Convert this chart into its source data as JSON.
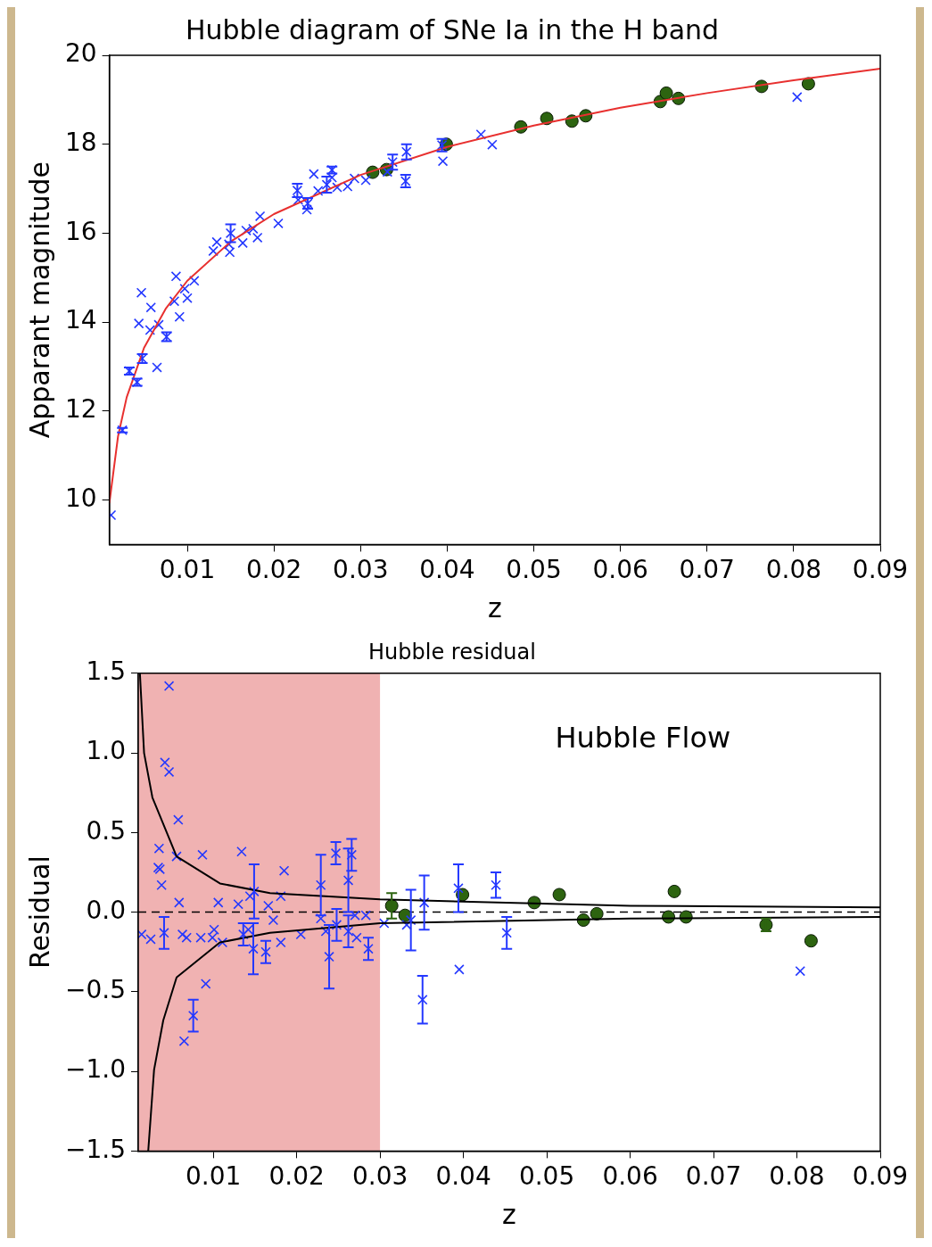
{
  "chart_data": [
    {
      "type": "scatter",
      "title": "Hubble diagram of SNe Ia in the H band",
      "xlabel": "z",
      "ylabel": "Apparant magnitude",
      "xlim": [
        0.001,
        0.09
      ],
      "xticks": [
        0.01,
        0.02,
        0.03,
        0.04,
        0.05,
        0.06,
        0.07,
        0.08,
        0.09
      ],
      "ylim": [
        9,
        20
      ],
      "yticks": [
        10,
        12,
        14,
        16,
        18,
        20
      ],
      "series": [
        {
          "type": "scatter",
          "marker": "cross",
          "color": "#2438ff",
          "x": [
            0.0012,
            0.0025,
            0.0033,
            0.0035,
            0.0042,
            0.0048,
            0.0044,
            0.0047,
            0.0058,
            0.0065,
            0.0057,
            0.0067,
            0.0076,
            0.0087,
            0.0091,
            0.0085,
            0.0097,
            0.01,
            0.0108,
            0.013,
            0.0134,
            0.0148,
            0.015,
            0.0149,
            0.0164,
            0.0168,
            0.0176,
            0.0181,
            0.0184,
            0.0205,
            0.0227,
            0.0228,
            0.0239,
            0.0238,
            0.0246,
            0.0251,
            0.0261,
            0.0267,
            0.0267,
            0.0273,
            0.0285,
            0.0293,
            0.0305,
            0.0306,
            0.0331,
            0.0337,
            0.0353,
            0.0352,
            0.0394,
            0.0395,
            0.0439,
            0.0452,
            0.0804
          ],
          "values": [
            9.66,
            11.57,
            12.9,
            null,
            12.65,
            13.18,
            13.97,
            14.66,
            14.33,
            12.98,
            13.82,
            13.94,
            13.67,
            15.03,
            14.12,
            14.47,
            14.75,
            14.54,
            14.93,
            15.6,
            15.8,
            15.75,
            16.0,
            15.57,
            15.78,
            16.06,
            16.1,
            15.9,
            16.38,
            16.22,
            16.96,
            16.75,
            16.67,
            16.53,
            17.33,
            16.95,
            17.09,
            17.42,
            17.25,
            17.03,
            17.05,
            17.23,
            null,
            17.19,
            17.38,
            17.6,
            17.83,
            17.17,
            17.98,
            17.62,
            18.22,
            17.99,
            19.06
          ],
          "errors": [
            null,
            0.05,
            0.08,
            null,
            0.08,
            0.1,
            null,
            null,
            null,
            null,
            null,
            null,
            0.1,
            null,
            null,
            null,
            null,
            null,
            null,
            null,
            null,
            null,
            0.2,
            null,
            null,
            null,
            null,
            null,
            null,
            null,
            0.15,
            null,
            0.12,
            null,
            null,
            null,
            0.18,
            0.08,
            null,
            null,
            null,
            null,
            null,
            null,
            null,
            0.17,
            0.17,
            0.14,
            0.14,
            null,
            null,
            null,
            null
          ]
        },
        {
          "type": "scatter",
          "marker": "circle",
          "color": "#2d6410",
          "x": [
            0.0314,
            0.033,
            0.0399,
            0.0485,
            0.0515,
            0.0544,
            0.056,
            0.0646,
            0.0653,
            0.0667,
            0.0763,
            0.0817
          ],
          "values": [
            17.37,
            17.43,
            18.0,
            18.39,
            18.58,
            18.52,
            18.64,
            18.96,
            19.15,
            19.03,
            19.3,
            19.36
          ]
        },
        {
          "type": "line",
          "marker": "none",
          "line_style": "solid",
          "color": "#e8302f",
          "x": [
            0.001,
            0.002,
            0.003,
            0.005,
            0.0075,
            0.01,
            0.015,
            0.02,
            0.03,
            0.04,
            0.05,
            0.06,
            0.07,
            0.08,
            0.09
          ],
          "values": [
            9.93,
            11.43,
            12.31,
            13.42,
            14.3,
            14.93,
            15.81,
            16.43,
            17.31,
            17.94,
            18.42,
            18.82,
            19.15,
            19.44,
            19.7
          ]
        }
      ]
    },
    {
      "type": "scatter",
      "title": "Hubble residual",
      "xlabel": "z",
      "ylabel": "Residual",
      "xlim": [
        0.001,
        0.09
      ],
      "xticks": [
        0.01,
        0.02,
        0.03,
        0.04,
        0.05,
        0.06,
        0.07,
        0.08,
        0.09
      ],
      "ylim": [
        -1.5,
        1.5
      ],
      "yticks": [
        {
          "value": -1.5,
          "label": "−1.5"
        },
        {
          "value": -1,
          "label": "−1.0"
        },
        {
          "value": -0.5,
          "label": "−0.5"
        },
        {
          "value": 0,
          "label": "0.0"
        },
        {
          "value": 0.5,
          "label": "0.5"
        },
        {
          "value": 1,
          "label": "1.0"
        },
        {
          "value": 1.5,
          "label": "1.5"
        }
      ],
      "bands": [
        {
          "axis": "x",
          "from": 0.001,
          "to": 0.03,
          "color": "#f0b2b2"
        }
      ],
      "ref_lines": [
        {
          "axis": "y",
          "value": 0,
          "color": "#000000",
          "line_style": "dashed"
        }
      ],
      "annotations": [
        "Hubble Flow"
      ],
      "series": [
        {
          "type": "scatter",
          "marker": "cross",
          "color": "#2438ff",
          "x": [
            0.0047,
            0.0042,
            0.0047,
            0.0058,
            0.0035,
            0.0034,
            0.0036,
            0.0038,
            0.0056,
            0.0087,
            0.0134,
            0.0185,
            0.0059,
            0.0106,
            0.013,
            0.0144,
            0.0149,
            0.0181,
            0.0229,
            0.0247,
            0.0266,
            0.0262,
            0.0166,
            0.0229,
            0.027,
            0.0283,
            0.0305,
            0.0014,
            0.0025,
            0.0041,
            0.0063,
            0.0068,
            0.0085,
            0.0099,
            0.0101,
            0.0111,
            0.0136,
            0.0142,
            0.0148,
            0.0163,
            0.0172,
            0.0181,
            0.0205,
            0.0239,
            0.0235,
            0.0248,
            0.0262,
            0.0272,
            0.0286,
            0.0091,
            0.0076,
            0.0065,
            0.0332,
            0.0337,
            0.0353,
            0.0351,
            0.0394,
            0.0395,
            0.0439,
            0.0452,
            0.0804
          ],
          "values": [
            1.42,
            0.94,
            0.88,
            0.58,
            0.4,
            0.28,
            0.27,
            0.17,
            0.35,
            0.36,
            0.38,
            0.26,
            0.06,
            0.06,
            0.05,
            0.1,
            0.13,
            0.1,
            0.17,
            0.37,
            0.36,
            0.2,
            0.04,
            -0.04,
            -0.02,
            -0.02,
            -0.07,
            -0.14,
            -0.17,
            -0.13,
            -0.14,
            -0.16,
            -0.16,
            -0.16,
            -0.11,
            -0.19,
            -0.14,
            -0.11,
            -0.23,
            -0.25,
            -0.05,
            -0.19,
            -0.14,
            -0.28,
            -0.12,
            -0.08,
            -0.12,
            -0.16,
            -0.23,
            -0.45,
            -0.65,
            -0.81,
            -0.08,
            -0.05,
            0.06,
            -0.55,
            0.15,
            -0.36,
            0.17,
            -0.13,
            -0.37
          ],
          "errors": [
            null,
            null,
            null,
            null,
            null,
            null,
            null,
            null,
            null,
            null,
            null,
            null,
            null,
            null,
            null,
            null,
            0.17,
            null,
            0.19,
            0.07,
            0.1,
            0.2,
            null,
            null,
            null,
            null,
            null,
            null,
            null,
            0.1,
            null,
            null,
            null,
            null,
            null,
            null,
            0.07,
            null,
            0.16,
            0.07,
            null,
            null,
            null,
            0.2,
            null,
            0.1,
            0.1,
            null,
            0.07,
            null,
            0.1,
            null,
            null,
            0.19,
            0.17,
            0.15,
            0.15,
            null,
            0.08,
            0.1,
            null
          ]
        },
        {
          "type": "scatter",
          "marker": "circle",
          "color": "#2d6410",
          "x": [
            0.0314,
            0.033,
            0.0399,
            0.0485,
            0.0515,
            0.0544,
            0.056,
            0.0646,
            0.0653,
            0.0667,
            0.0763,
            0.0817
          ],
          "values": [
            0.04,
            -0.02,
            0.11,
            0.06,
            0.11,
            -0.05,
            -0.01,
            -0.03,
            0.13,
            -0.03,
            -0.08,
            -0.18
          ],
          "errors": [
            0.08,
            null,
            null,
            null,
            null,
            null,
            null,
            null,
            null,
            null,
            0.04,
            null
          ]
        },
        {
          "type": "line",
          "marker": "none",
          "line_style": "solid",
          "color": "#000000",
          "x": [
            0.0012,
            0.0017,
            0.0027,
            0.0056,
            0.0108,
            0.0168,
            0.03,
            0.06,
            0.09
          ],
          "values": [
            1.5,
            1.0,
            0.72,
            0.35,
            0.18,
            0.12,
            0.08,
            0.04,
            0.03
          ]
        },
        {
          "type": "line",
          "marker": "none",
          "line_style": "solid",
          "color": "#000000",
          "x": [
            0.0022,
            0.0029,
            0.004,
            0.0056,
            0.0108,
            0.0168,
            0.03,
            0.06,
            0.09
          ],
          "values": [
            -1.5,
            -0.99,
            -0.68,
            -0.41,
            -0.19,
            -0.13,
            -0.07,
            -0.04,
            -0.03
          ]
        }
      ]
    }
  ]
}
